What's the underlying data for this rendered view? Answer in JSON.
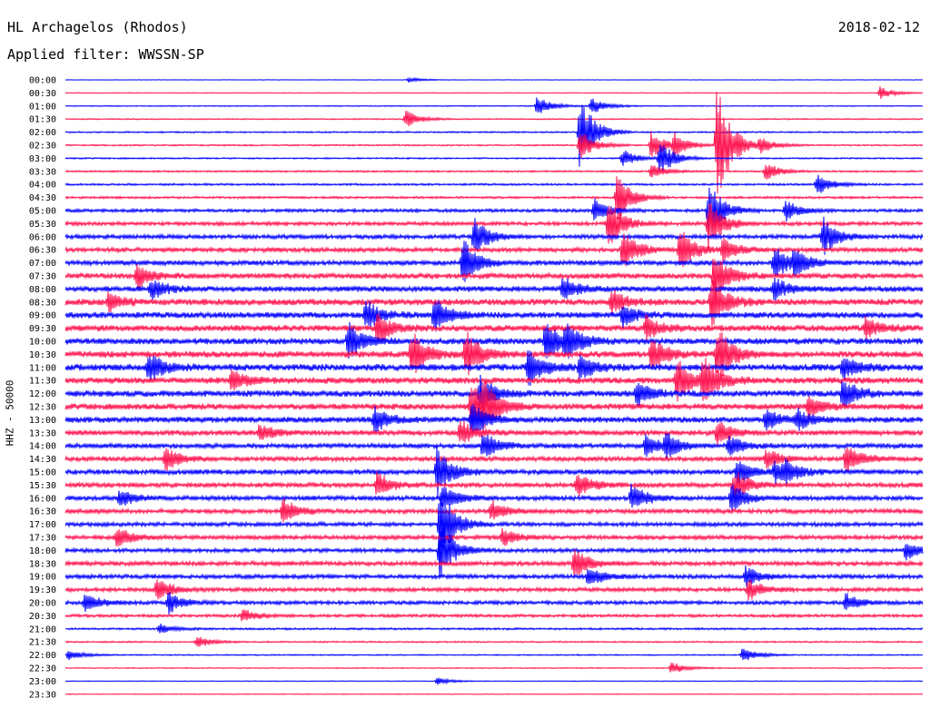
{
  "header": {
    "station": "HL Archagelos (Rhodos)",
    "date": "2018-02-12",
    "filter": "Applied filter: WWSSN-SP"
  },
  "chart_data": {
    "type": "line",
    "title": "HL Archagelos (Rhodos)",
    "date": "2018-02-12",
    "ylabel": "HHZ - 50000",
    "colors": [
      "#0000ff",
      "#ff1450"
    ],
    "row_labels": [
      "00:00",
      "00:30",
      "01:00",
      "01:30",
      "02:00",
      "02:30",
      "03:00",
      "03:30",
      "04:00",
      "04:30",
      "05:00",
      "05:30",
      "06:00",
      "06:30",
      "07:00",
      "07:30",
      "08:00",
      "08:30",
      "09:00",
      "09:30",
      "10:00",
      "10:30",
      "11:00",
      "11:30",
      "12:00",
      "12:30",
      "13:00",
      "13:30",
      "14:00",
      "14:30",
      "15:00",
      "15:30",
      "16:00",
      "16:30",
      "17:00",
      "17:30",
      "18:00",
      "18:30",
      "19:00",
      "19:30",
      "20:00",
      "20:30",
      "21:00",
      "21:30",
      "22:00",
      "22:30",
      "23:00",
      "23:30"
    ],
    "noise_level": [
      0.2,
      0.3,
      0.4,
      0.5,
      0.6,
      0.6,
      0.6,
      0.7,
      0.8,
      0.9,
      1.3,
      1.5,
      1.7,
      1.8,
      2.0,
      2.2,
      2.3,
      2.6,
      2.5,
      2.6,
      2.6,
      2.6,
      2.8,
      2.6,
      2.6,
      2.5,
      2.4,
      2.1,
      2.0,
      1.9,
      2.1,
      1.9,
      1.9,
      1.8,
      1.7,
      1.7,
      1.6,
      1.8,
      1.7,
      1.6,
      1.5,
      1.2,
      0.8,
      0.6,
      0.5,
      0.4,
      0.3,
      0.3
    ],
    "events": [
      {
        "row": 0,
        "minute": 12,
        "amp": 3
      },
      {
        "row": 1,
        "minute": 28.5,
        "amp": 7
      },
      {
        "row": 2,
        "minute": 16.5,
        "amp": 11
      },
      {
        "row": 2,
        "minute": 18.4,
        "amp": 10
      },
      {
        "row": 3,
        "minute": 11.9,
        "amp": 10
      },
      {
        "row": 4,
        "minute": 18,
        "amp": 45
      },
      {
        "row": 5,
        "minute": 18,
        "amp": 18
      },
      {
        "row": 5,
        "minute": 20.5,
        "amp": 16
      },
      {
        "row": 5,
        "minute": 21.3,
        "amp": 12
      },
      {
        "row": 5,
        "minute": 22.8,
        "amp": 70
      },
      {
        "row": 5,
        "minute": 24.3,
        "amp": 9
      },
      {
        "row": 6,
        "minute": 19.5,
        "amp": 10
      },
      {
        "row": 6,
        "minute": 20.8,
        "amp": 20
      },
      {
        "row": 7,
        "minute": 20.5,
        "amp": 8
      },
      {
        "row": 7,
        "minute": 24.5,
        "amp": 10
      },
      {
        "row": 8,
        "minute": 26.3,
        "amp": 12
      },
      {
        "row": 9,
        "minute": 19.3,
        "amp": 30
      },
      {
        "row": 10,
        "minute": 18.5,
        "amp": 14
      },
      {
        "row": 10,
        "minute": 22.5,
        "amp": 35
      },
      {
        "row": 10,
        "minute": 25.2,
        "amp": 12
      },
      {
        "row": 11,
        "minute": 19,
        "amp": 28
      },
      {
        "row": 11,
        "minute": 22.5,
        "amp": 30
      },
      {
        "row": 12,
        "minute": 14.3,
        "amp": 22
      },
      {
        "row": 12,
        "minute": 26.5,
        "amp": 22
      },
      {
        "row": 13,
        "minute": 19.5,
        "amp": 24
      },
      {
        "row": 13,
        "minute": 21.5,
        "amp": 26
      },
      {
        "row": 13,
        "minute": 23,
        "amp": 15
      },
      {
        "row": 14,
        "minute": 13.9,
        "amp": 28
      },
      {
        "row": 14,
        "minute": 24.8,
        "amp": 20
      },
      {
        "row": 14,
        "minute": 25.5,
        "amp": 15
      },
      {
        "row": 15,
        "minute": 2.5,
        "amp": 15
      },
      {
        "row": 15,
        "minute": 22.7,
        "amp": 30
      },
      {
        "row": 16,
        "minute": 3,
        "amp": 12
      },
      {
        "row": 16,
        "minute": 17.4,
        "amp": 14
      },
      {
        "row": 16,
        "minute": 24.8,
        "amp": 12
      },
      {
        "row": 17,
        "minute": 1.5,
        "amp": 10
      },
      {
        "row": 17,
        "minute": 19.1,
        "amp": 14
      },
      {
        "row": 17,
        "minute": 22.6,
        "amp": 30
      },
      {
        "row": 18,
        "minute": 10.5,
        "amp": 18
      },
      {
        "row": 18,
        "minute": 12.9,
        "amp": 20
      },
      {
        "row": 18,
        "minute": 19.5,
        "amp": 14
      },
      {
        "row": 19,
        "minute": 10.9,
        "amp": 18
      },
      {
        "row": 19,
        "minute": 20.3,
        "amp": 15
      },
      {
        "row": 19,
        "minute": 28,
        "amp": 12
      },
      {
        "row": 20,
        "minute": 9.9,
        "amp": 22
      },
      {
        "row": 20,
        "minute": 16.8,
        "amp": 25
      },
      {
        "row": 20,
        "minute": 17.5,
        "amp": 20
      },
      {
        "row": 21,
        "minute": 12.1,
        "amp": 28
      },
      {
        "row": 21,
        "minute": 14,
        "amp": 28
      },
      {
        "row": 21,
        "minute": 20.5,
        "amp": 20
      },
      {
        "row": 21,
        "minute": 22.8,
        "amp": 35
      },
      {
        "row": 22,
        "minute": 2.9,
        "amp": 18
      },
      {
        "row": 22,
        "minute": 16.2,
        "amp": 20
      },
      {
        "row": 22,
        "minute": 18,
        "amp": 15
      },
      {
        "row": 22,
        "minute": 27.2,
        "amp": 14
      },
      {
        "row": 23,
        "minute": 5.8,
        "amp": 12
      },
      {
        "row": 23,
        "minute": 21.4,
        "amp": 25
      },
      {
        "row": 23,
        "minute": 22.3,
        "amp": 30
      },
      {
        "row": 24,
        "minute": 14.5,
        "amp": 20
      },
      {
        "row": 24,
        "minute": 20,
        "amp": 14
      },
      {
        "row": 24,
        "minute": 27.2,
        "amp": 18
      },
      {
        "row": 25,
        "minute": 14.2,
        "amp": 35
      },
      {
        "row": 25,
        "minute": 14.6,
        "amp": 25
      },
      {
        "row": 25,
        "minute": 26,
        "amp": 12
      },
      {
        "row": 26,
        "minute": 10.8,
        "amp": 16
      },
      {
        "row": 26,
        "minute": 14.2,
        "amp": 20
      },
      {
        "row": 26,
        "minute": 24.5,
        "amp": 12
      },
      {
        "row": 26,
        "minute": 25.6,
        "amp": 12
      },
      {
        "row": 27,
        "minute": 6.8,
        "amp": 10
      },
      {
        "row": 27,
        "minute": 13.8,
        "amp": 15
      },
      {
        "row": 27,
        "minute": 22.8,
        "amp": 14
      },
      {
        "row": 28,
        "minute": 14.6,
        "amp": 16
      },
      {
        "row": 28,
        "minute": 20.3,
        "amp": 12
      },
      {
        "row": 28,
        "minute": 21,
        "amp": 14
      },
      {
        "row": 28,
        "minute": 23.2,
        "amp": 12
      },
      {
        "row": 29,
        "minute": 3.5,
        "amp": 14
      },
      {
        "row": 29,
        "minute": 24.5,
        "amp": 12
      },
      {
        "row": 29,
        "minute": 27.3,
        "amp": 18
      },
      {
        "row": 30,
        "minute": 13,
        "amp": 28
      },
      {
        "row": 30,
        "minute": 23.5,
        "amp": 14
      },
      {
        "row": 30,
        "minute": 24.8,
        "amp": 12
      },
      {
        "row": 30,
        "minute": 25.2,
        "amp": 10
      },
      {
        "row": 31,
        "minute": 10.9,
        "amp": 14
      },
      {
        "row": 31,
        "minute": 17.9,
        "amp": 14
      },
      {
        "row": 31,
        "minute": 23.4,
        "amp": 18
      },
      {
        "row": 32,
        "minute": 1.9,
        "amp": 10
      },
      {
        "row": 32,
        "minute": 13.2,
        "amp": 16
      },
      {
        "row": 32,
        "minute": 19.8,
        "amp": 16
      },
      {
        "row": 32,
        "minute": 23.3,
        "amp": 18
      },
      {
        "row": 33,
        "minute": 7.6,
        "amp": 15
      },
      {
        "row": 33,
        "minute": 14.9,
        "amp": 12
      },
      {
        "row": 34,
        "minute": 13.1,
        "amp": 45
      },
      {
        "row": 35,
        "minute": 1.8,
        "amp": 12
      },
      {
        "row": 35,
        "minute": 15.3,
        "amp": 10
      },
      {
        "row": 36,
        "minute": 13.1,
        "amp": 35
      },
      {
        "row": 36,
        "minute": 29.4,
        "amp": 10
      },
      {
        "row": 37,
        "minute": 17.8,
        "amp": 18
      },
      {
        "row": 38,
        "minute": 18.3,
        "amp": 12
      },
      {
        "row": 38,
        "minute": 23.8,
        "amp": 12
      },
      {
        "row": 39,
        "minute": 3.2,
        "amp": 14
      },
      {
        "row": 39,
        "minute": 23.9,
        "amp": 12
      },
      {
        "row": 40,
        "minute": 0.7,
        "amp": 12
      },
      {
        "row": 40,
        "minute": 3.6,
        "amp": 12
      },
      {
        "row": 40,
        "minute": 27.3,
        "amp": 10
      },
      {
        "row": 41,
        "minute": 6.2,
        "amp": 8
      },
      {
        "row": 42,
        "minute": 3.3,
        "amp": 6
      },
      {
        "row": 43,
        "minute": 4.6,
        "amp": 7
      },
      {
        "row": 44,
        "minute": 0.1,
        "amp": 6
      },
      {
        "row": 44,
        "minute": 23.7,
        "amp": 9
      },
      {
        "row": 45,
        "minute": 21.2,
        "amp": 7
      },
      {
        "row": 46,
        "minute": 13,
        "amp": 4
      }
    ]
  }
}
